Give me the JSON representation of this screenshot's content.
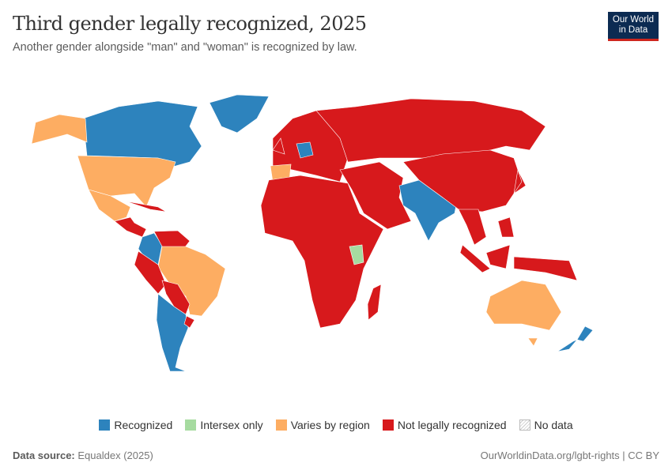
{
  "header": {
    "title": "Third gender legally recognized, 2025",
    "subtitle": "Another gender alongside \"man\" and \"woman\" is recognized by law.",
    "logo_line1": "Our World",
    "logo_line2": "in Data"
  },
  "legend": [
    {
      "label": "Recognized",
      "color": "#2d83bd"
    },
    {
      "label": "Intersex only",
      "color": "#a6dba0"
    },
    {
      "label": "Varies by region",
      "color": "#fdad62"
    },
    {
      "label": "Not legally recognized",
      "color": "#d7191c"
    },
    {
      "label": "No data",
      "color": "hatched"
    }
  ],
  "map_regions": [
    {
      "region": "canada",
      "status": "Recognized"
    },
    {
      "region": "greenland",
      "status": "Recognized"
    },
    {
      "region": "alaska",
      "status": "Varies by region"
    },
    {
      "region": "united-states",
      "status": "Varies by region"
    },
    {
      "region": "mexico",
      "status": "Varies by region"
    },
    {
      "region": "central-america",
      "status": "Not legally recognized"
    },
    {
      "region": "colombia",
      "status": "Recognized"
    },
    {
      "region": "venezuela",
      "status": "Not legally recognized"
    },
    {
      "region": "brazil",
      "status": "Varies by region"
    },
    {
      "region": "peru",
      "status": "Not legally recognized"
    },
    {
      "region": "bolivia-paraguay",
      "status": "Not legally recognized"
    },
    {
      "region": "argentina-chile",
      "status": "Recognized"
    },
    {
      "region": "uruguay",
      "status": "Not legally recognized"
    },
    {
      "region": "europe",
      "status": "Not legally recognized"
    },
    {
      "region": "spain",
      "status": "Varies by region"
    },
    {
      "region": "germany",
      "status": "Recognized"
    },
    {
      "region": "russia",
      "status": "Not legally recognized"
    },
    {
      "region": "africa",
      "status": "Not legally recognized"
    },
    {
      "region": "kenya",
      "status": "Intersex only"
    },
    {
      "region": "madagascar",
      "status": "Not legally recognized"
    },
    {
      "region": "middle-east",
      "status": "Not legally recognized"
    },
    {
      "region": "india",
      "status": "Recognized"
    },
    {
      "region": "china-east-asia",
      "status": "Not legally recognized"
    },
    {
      "region": "southeast-asia",
      "status": "Not legally recognized"
    },
    {
      "region": "australia",
      "status": "Varies by region"
    },
    {
      "region": "new-zealand",
      "status": "Recognized"
    }
  ],
  "footer": {
    "source_label": "Data source:",
    "source": "Equaldex (2025)",
    "url": "OurWorldinData.org/lgbt-rights | CC BY"
  }
}
